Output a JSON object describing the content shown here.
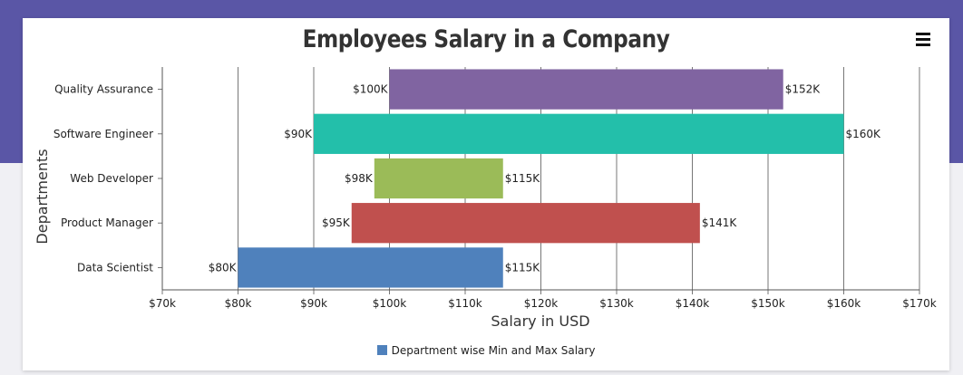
{
  "chart_data": {
    "type": "bar",
    "subtype": "range-bar-horizontal",
    "title": "Employees Salary in a Company",
    "xlabel": "Salary in USD",
    "ylabel": "Departments",
    "xlim": [
      70000,
      170000
    ],
    "x_ticks": [
      {
        "value": 70000,
        "label": "$70k"
      },
      {
        "value": 80000,
        "label": "$80k"
      },
      {
        "value": 90000,
        "label": "$90k"
      },
      {
        "value": 100000,
        "label": "$100k"
      },
      {
        "value": 110000,
        "label": "$110k"
      },
      {
        "value": 120000,
        "label": "$120k"
      },
      {
        "value": 130000,
        "label": "$130k"
      },
      {
        "value": 140000,
        "label": "$140k"
      },
      {
        "value": 150000,
        "label": "$150k"
      },
      {
        "value": 160000,
        "label": "$160k"
      },
      {
        "value": 170000,
        "label": "$170k"
      }
    ],
    "grid": true,
    "legend_position": "bottom",
    "series": [
      {
        "name": "Department wise Min and Max Salary",
        "color": "#4f81bc",
        "data": [
          {
            "category": "Data Scientist",
            "low": 80000,
            "high": 115000,
            "low_label": "$80K",
            "high_label": "$115K",
            "color": "#4f81bc"
          },
          {
            "category": "Product Manager",
            "low": 95000,
            "high": 141000,
            "low_label": "$95K",
            "high_label": "$141K",
            "color": "#c0504e"
          },
          {
            "category": "Web Developer",
            "low": 98000,
            "high": 115000,
            "low_label": "$98K",
            "high_label": "$115K",
            "color": "#9bbb58"
          },
          {
            "category": "Software Engineer",
            "low": 90000,
            "high": 160000,
            "low_label": "$90K",
            "high_label": "$160K",
            "color": "#23bfaa"
          },
          {
            "category": "Quality Assurance",
            "low": 100000,
            "high": 152000,
            "low_label": "$100K",
            "high_label": "$152K",
            "color": "#8064a1"
          }
        ]
      }
    ]
  },
  "toolbar": {
    "menu_icon": "hamburger-menu-icon"
  }
}
